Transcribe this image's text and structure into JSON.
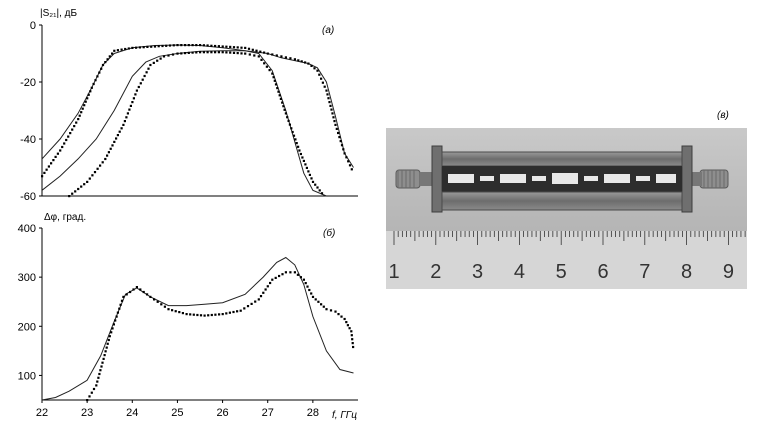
{
  "chart_data": [
    {
      "type": "line",
      "panel_label": "(а)",
      "ylabel": "|S₂₁|, дБ",
      "xlabel": "",
      "ylim": [
        -60,
        0
      ],
      "xlim": [
        22,
        29
      ],
      "y_ticks": [
        "0",
        "-20",
        "-40",
        "-60"
      ],
      "series": [
        {
          "style": "solid",
          "x": [
            22.0,
            22.4,
            22.8,
            23.1,
            23.35,
            23.6,
            24.0,
            24.5,
            25.0,
            25.5,
            26.0,
            26.5,
            27.0,
            27.3,
            27.6,
            27.9,
            28.1,
            28.3,
            28.5,
            28.7,
            28.9
          ],
          "values": [
            -47,
            -40,
            -31,
            -22,
            -14,
            -10,
            -8,
            -7.2,
            -7,
            -7.2,
            -8,
            -9,
            -10,
            -11.5,
            -12.5,
            -13.5,
            -15,
            -20,
            -32,
            -45,
            -50
          ]
        },
        {
          "style": "dotted",
          "x": [
            22.0,
            22.4,
            22.8,
            23.1,
            23.35,
            23.6,
            24.0,
            24.5,
            25.0,
            25.5,
            26.0,
            26.5,
            27.0,
            27.3,
            27.6,
            27.9,
            28.1,
            28.3,
            28.5,
            28.7,
            28.9
          ],
          "values": [
            -53,
            -44,
            -33,
            -22,
            -14,
            -9,
            -8,
            -7.5,
            -7,
            -7,
            -7.5,
            -8,
            -10,
            -11,
            -12,
            -13.5,
            -16,
            -23,
            -35,
            -45,
            -52
          ]
        },
        {
          "style": "solid",
          "x": [
            22.0,
            22.4,
            22.8,
            23.2,
            23.6,
            24.0,
            24.3,
            24.6,
            25.0,
            25.5,
            26.0,
            26.5,
            26.8,
            27.1,
            27.4,
            27.8,
            28.0,
            28.3
          ],
          "values": [
            -58,
            -53,
            -47,
            -40,
            -30,
            -18,
            -13,
            -11,
            -10,
            -9.2,
            -9,
            -9,
            -10,
            -16,
            -30,
            -52,
            -58,
            -60
          ]
        },
        {
          "style": "dotted",
          "x": [
            22.6,
            23.0,
            23.4,
            23.8,
            24.1,
            24.4,
            24.7,
            25.0,
            25.5,
            26.0,
            26.5,
            26.8,
            27.1,
            27.4,
            27.7,
            28.0,
            28.2,
            28.3
          ],
          "values": [
            -60,
            -55,
            -47,
            -35,
            -23,
            -14,
            -11,
            -10,
            -9.5,
            -9.5,
            -10,
            -11,
            -17,
            -31,
            -44,
            -55,
            -59,
            -60
          ]
        }
      ]
    },
    {
      "type": "line",
      "panel_label": "(б)",
      "ylabel": "Δφ, град.",
      "xlabel": "f, ГГц",
      "ylim": [
        50,
        400
      ],
      "xlim": [
        22,
        29
      ],
      "y_ticks": [
        "400",
        "300",
        "200",
        "100"
      ],
      "x_ticks": [
        "22",
        "23",
        "24",
        "25",
        "26",
        "27",
        "28"
      ],
      "series": [
        {
          "style": "solid",
          "x": [
            22.0,
            22.3,
            22.6,
            23.0,
            23.3,
            23.6,
            23.85,
            24.1,
            24.4,
            24.8,
            25.2,
            25.6,
            26.0,
            26.5,
            26.9,
            27.2,
            27.4,
            27.6,
            27.8,
            28.0,
            28.3,
            28.6,
            28.9
          ],
          "values": [
            50,
            55,
            68,
            90,
            140,
            210,
            265,
            278,
            260,
            242,
            242,
            245,
            248,
            265,
            300,
            330,
            340,
            325,
            285,
            220,
            150,
            112,
            105
          ]
        },
        {
          "style": "dotted",
          "x": [
            23.0,
            23.2,
            23.5,
            23.8,
            24.1,
            24.4,
            24.8,
            25.2,
            25.6,
            26.0,
            26.4,
            26.8,
            27.1,
            27.4,
            27.6,
            27.8,
            28.0,
            28.3,
            28.5,
            28.7,
            28.85,
            28.9
          ],
          "values": [
            50,
            80,
            180,
            260,
            280,
            260,
            235,
            225,
            222,
            225,
            232,
            255,
            295,
            310,
            310,
            295,
            260,
            235,
            230,
            215,
            190,
            150
          ]
        }
      ]
    }
  ],
  "photo": {
    "panel_label": "(в)",
    "ruler_numbers": [
      "1",
      "2",
      "3",
      "4",
      "5",
      "6",
      "7",
      "8",
      "9"
    ]
  }
}
